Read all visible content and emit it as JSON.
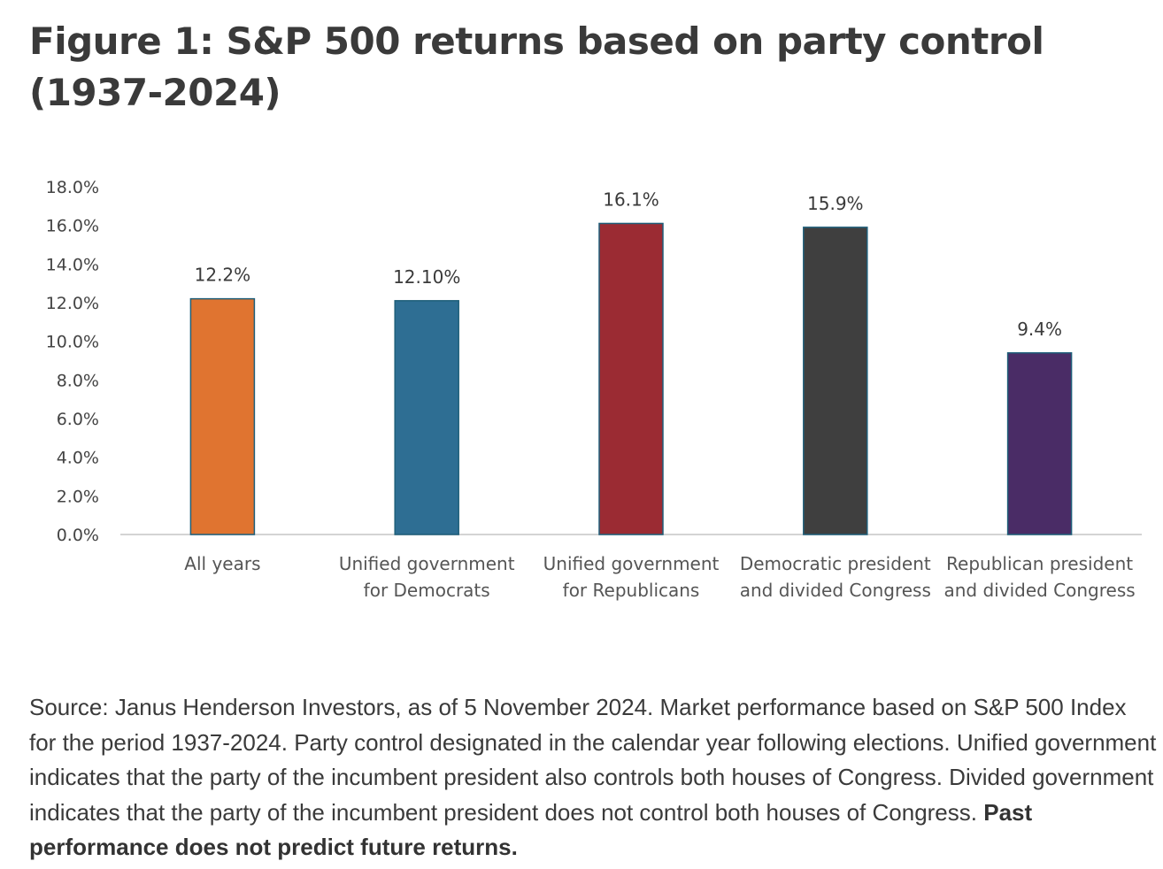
{
  "title": "Figure 1: S&P 500 returns based on party control (1937-2024)",
  "chart_data": {
    "type": "bar",
    "title": "",
    "xlabel": "",
    "ylabel": "",
    "ylim": [
      0,
      18
    ],
    "yticks": [
      "0.0%",
      "2.0%",
      "4.0%",
      "6.0%",
      "8.0%",
      "10.0%",
      "12.0%",
      "14.0%",
      "16.0%",
      "18.0%"
    ],
    "grid": false,
    "legend": "none",
    "categories": [
      [
        "All years"
      ],
      [
        "Unified government",
        "for Democrats"
      ],
      [
        "Unified government",
        "for Republicans"
      ],
      [
        "Democratic president",
        "and divided Congress"
      ],
      [
        "Republican president",
        "and divided Congress"
      ]
    ],
    "values": [
      12.2,
      12.1,
      16.1,
      15.9,
      9.4
    ],
    "data_labels": [
      "12.2%",
      "12.10%",
      "16.1%",
      "15.9%",
      "9.4%"
    ],
    "colors": [
      "#E07430",
      "#2E6E93",
      "#9B2B33",
      "#3F3F3F",
      "#4A2C66"
    ]
  },
  "footnote": {
    "text": "Source: Janus Henderson Investors, as of 5 November 2024. Market performance based on S&P 500 Index for the period 1937-2024. Party control designated in the calendar year following elections. Unified government indicates that the party of the incumbent president also controls both houses of Congress. Divided government indicates that the party of the incumbent president does not control both houses of Congress.",
    "bold": "Past performance does not predict future returns."
  }
}
